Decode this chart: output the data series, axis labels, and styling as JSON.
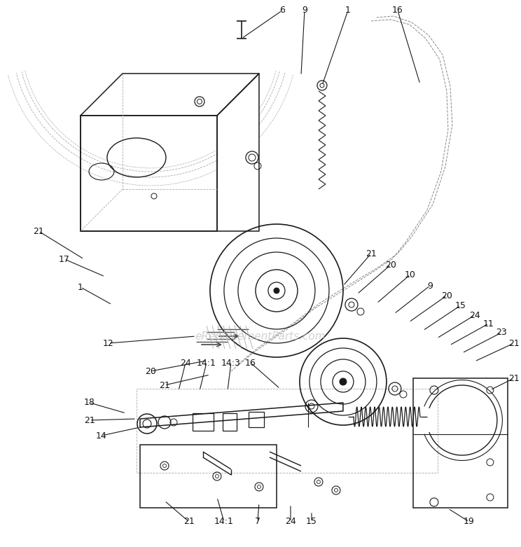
{
  "bg_color": "#ffffff",
  "watermark": "eReplacementParts.com",
  "fig_width": 7.44,
  "fig_height": 7.81,
  "line_color": "#1a1a1a",
  "dashed_color": "#999999",
  "lw": 0.9
}
